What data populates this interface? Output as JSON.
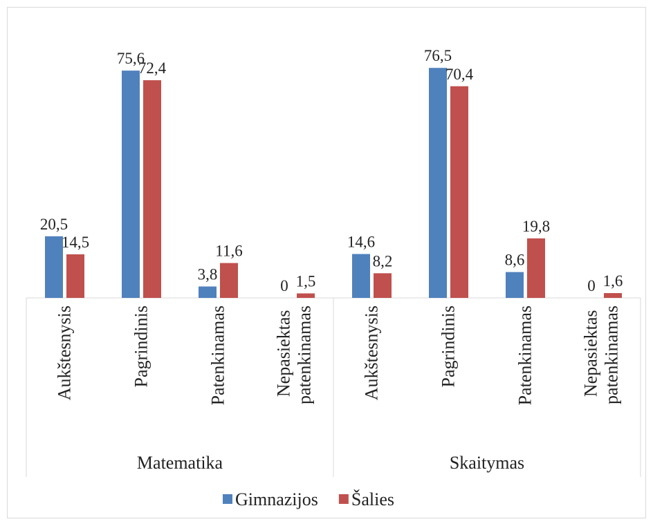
{
  "chart_data": {
    "type": "bar",
    "groups": [
      "Matematika",
      "Skaitymas"
    ],
    "categories": [
      "Aukštesnysis",
      "Pagrindinis",
      "Patenkinamas",
      "Nepasiektas patenkinamas",
      "Aukštesnysis",
      "Pagrindinis",
      "Patenkinamas",
      "Nepasiektas patenkinamas"
    ],
    "series": [
      {
        "name": "Gimnazijos",
        "color": "#4f81bd",
        "values": [
          20.5,
          75.6,
          3.8,
          0,
          14.6,
          76.5,
          8.6,
          0
        ],
        "value_labels": [
          "20,5",
          "75,6",
          "3,8",
          "0",
          "14,6",
          "76,5",
          "8,6",
          "0"
        ]
      },
      {
        "name": "Šalies",
        "color": "#c0504d",
        "values": [
          14.5,
          72.4,
          11.6,
          1.5,
          8.2,
          70.4,
          19.8,
          1.6
        ],
        "value_labels": [
          "14,5",
          "72,4",
          "11,6",
          "1,5",
          "8,2",
          "70,4",
          "19,8",
          "1,6"
        ]
      }
    ],
    "ylim": [
      0,
      80
    ],
    "legend": "bottom"
  }
}
